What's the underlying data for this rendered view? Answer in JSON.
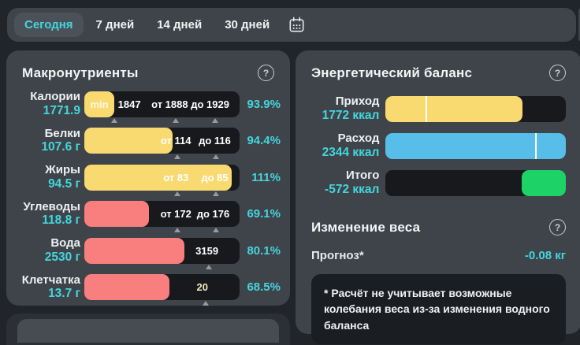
{
  "colors": {
    "accent_teal": "#45d5dc",
    "yellow": "#f8da71",
    "red": "#f97e7e",
    "blue": "#57bde9",
    "green": "#1dd368",
    "panel_bg": "#3e444a",
    "track_bg": "#17191c"
  },
  "tabbar": {
    "tabs": [
      {
        "label": "Сегодня"
      },
      {
        "label": "7 дней"
      },
      {
        "label": "14 дней"
      },
      {
        "label": "30 дней"
      }
    ],
    "calendar_icon": "calendar-icon"
  },
  "macros": {
    "title": "Макронутриенты",
    "help_icon": "?",
    "rows": [
      {
        "label": "Калории",
        "value": "1771.9",
        "percent": "93.9%",
        "fill_pct": 19.3,
        "fill_color": "#f8da71",
        "chip_label": "min",
        "markers": [
          {
            "text": "1847",
            "text_pct": 29,
            "tri_pct": 19.5
          },
          {
            "text": "от 1888",
            "text_pct": 55,
            "tri_pct": 59
          },
          {
            "text": "до 1929",
            "text_pct": 81,
            "tri_pct": 84.5
          }
        ]
      },
      {
        "label": "Белки",
        "value": "107.6 г",
        "percent": "94.4%",
        "fill_pct": 57,
        "fill_color": "#f8da71",
        "markers": [
          {
            "text": "от 114",
            "text_pct": 59,
            "tri_pct": 60
          },
          {
            "text": "до 116",
            "text_pct": 84,
            "tri_pct": 85
          }
        ]
      },
      {
        "label": "Жиры",
        "value": "94.5 г",
        "percent": "111%",
        "fill_pct": 95,
        "fill_color": "#f8da71",
        "markers": [
          {
            "text": "от 83",
            "text_pct": 59,
            "tri_pct": 60
          },
          {
            "text": "до 85",
            "text_pct": 84,
            "tri_pct": 85
          }
        ]
      },
      {
        "label": "Углеводы",
        "value": "118.8 г",
        "percent": "69.1%",
        "fill_pct": 41.6,
        "fill_color": "#f97e7e",
        "markers": [
          {
            "text": "от 172",
            "text_pct": 59,
            "tri_pct": 60
          },
          {
            "text": "до 176",
            "text_pct": 83,
            "tri_pct": 85
          }
        ]
      },
      {
        "label": "Вода",
        "value": "2530 г",
        "percent": "80.1%",
        "fill_pct": 64.5,
        "fill_color": "#f97e7e",
        "markers": [
          {
            "text": "3159",
            "text_pct": 79,
            "tri_pct": 80
          }
        ]
      },
      {
        "label": "Клетчатка",
        "value": "13.7 г",
        "percent": "68.5%",
        "fill_pct": 55,
        "fill_color": "#f97e7e",
        "markers": [
          {
            "text": "20",
            "text_pct": 76,
            "tri_pct": 78,
            "text_color": "#f3e9c0"
          }
        ]
      }
    ]
  },
  "energy": {
    "title": "Энергетический баланс",
    "help_icon": "?",
    "rows": [
      {
        "label": "Приход",
        "value": "1772 ккал",
        "fill_pct": 76,
        "fill_color": "#f8da71",
        "tick_pct": 22
      },
      {
        "label": "Расход",
        "value": "2344 ккал",
        "fill_pct": 100,
        "fill_color": "#57bde9",
        "tick_pct": 83
      },
      {
        "label": "Итого",
        "value": "-572 ккал",
        "seg_left_pct": 75.5,
        "seg_width_pct": 24.5,
        "fill_color": "#1dd368"
      }
    ]
  },
  "weight": {
    "title": "Изменение веса",
    "help_icon": "?",
    "forecast_label": "Прогноз*",
    "forecast_value": "-0.08 кг",
    "note": "* Расчёт не учитывает возможные колебания веса из-за изменения водного баланса"
  }
}
